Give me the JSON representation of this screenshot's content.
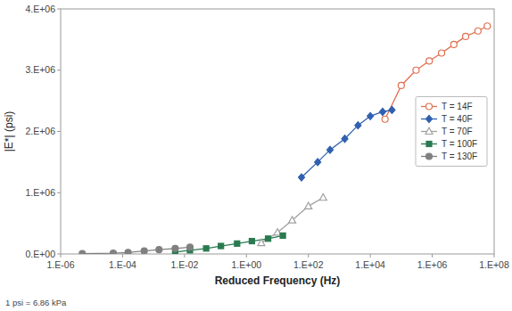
{
  "chart_data": {
    "type": "line",
    "x_label": "Reduced Frequency (Hz)",
    "y_label": "|E*| (psi)",
    "annotations": [
      "1 psi = 6.86 kPa"
    ],
    "log": "x",
    "grid": false,
    "legend": "right",
    "xlim": [
      1e-06,
      100000000
    ],
    "ylim": [
      0,
      4000000
    ],
    "xticks": [
      {
        "value": 1e-06,
        "label": "1.E-06"
      },
      {
        "value": 0.0001,
        "label": "1.E-04"
      },
      {
        "value": 0.01,
        "label": "1.E-02"
      },
      {
        "value": 1,
        "label": "1.E+00"
      },
      {
        "value": 100,
        "label": "1.E+02"
      },
      {
        "value": 10000,
        "label": "1.E+04"
      },
      {
        "value": 1000000,
        "label": "1.E+06"
      },
      {
        "value": 100000000,
        "label": "1.E+08"
      }
    ],
    "yticks": [
      {
        "value": 0,
        "label": "0.E+00"
      },
      {
        "value": 1000000,
        "label": "1.E+06"
      },
      {
        "value": 2000000,
        "label": "2.E+06"
      },
      {
        "value": 3000000,
        "label": "3.E+06"
      },
      {
        "value": 4000000,
        "label": "4.E+06"
      }
    ],
    "series": [
      {
        "name": "T = 14F",
        "color": "#e07050",
        "marker": "circle-open",
        "x": [
          30000.0,
          100000.0,
          300000.0,
          800000.0,
          2000000.0,
          5000000.0,
          12000000.0,
          30000000.0,
          60000000.0
        ],
        "values": [
          2200000.0,
          2750000.0,
          3000000.0,
          3150000.0,
          3280000.0,
          3420000.0,
          3550000.0,
          3640000.0,
          3720000.0
        ]
      },
      {
        "name": "T = 40F",
        "color": "#3060b0",
        "marker": "diamond",
        "x": [
          60.0,
          200.0,
          500.0,
          1500.0,
          4000.0,
          10000.0,
          25000.0,
          50000.0
        ],
        "values": [
          1250000.0,
          1500000.0,
          1700000.0,
          1880000.0,
          2100000.0,
          2250000.0,
          2320000.0,
          2350000.0
        ]
      },
      {
        "name": "T = 70F",
        "color": "#a0a0a0",
        "marker": "triangle-open",
        "x": [
          3.0,
          10.0,
          30.0,
          100.0,
          300.0
        ],
        "values": [
          180000.0,
          350000.0,
          550000.0,
          780000.0,
          920000.0
        ]
      },
      {
        "name": "T = 100F",
        "color": "#2a7a50",
        "marker": "square",
        "x": [
          0.005,
          0.015,
          0.05,
          0.15,
          0.5,
          1.5,
          5.0,
          15.0
        ],
        "values": [
          30000.0,
          60000.0,
          90000.0,
          130000.0,
          170000.0,
          210000.0,
          250000.0,
          300000.0
        ]
      },
      {
        "name": "T = 130F",
        "color": "#808080",
        "marker": "circle",
        "x": [
          5e-06,
          5e-05,
          0.00015,
          0.0005,
          0.0015,
          0.005,
          0.015
        ],
        "values": [
          5000.0,
          12000.0,
          25000.0,
          50000.0,
          70000.0,
          90000.0,
          110000.0
        ]
      }
    ]
  }
}
